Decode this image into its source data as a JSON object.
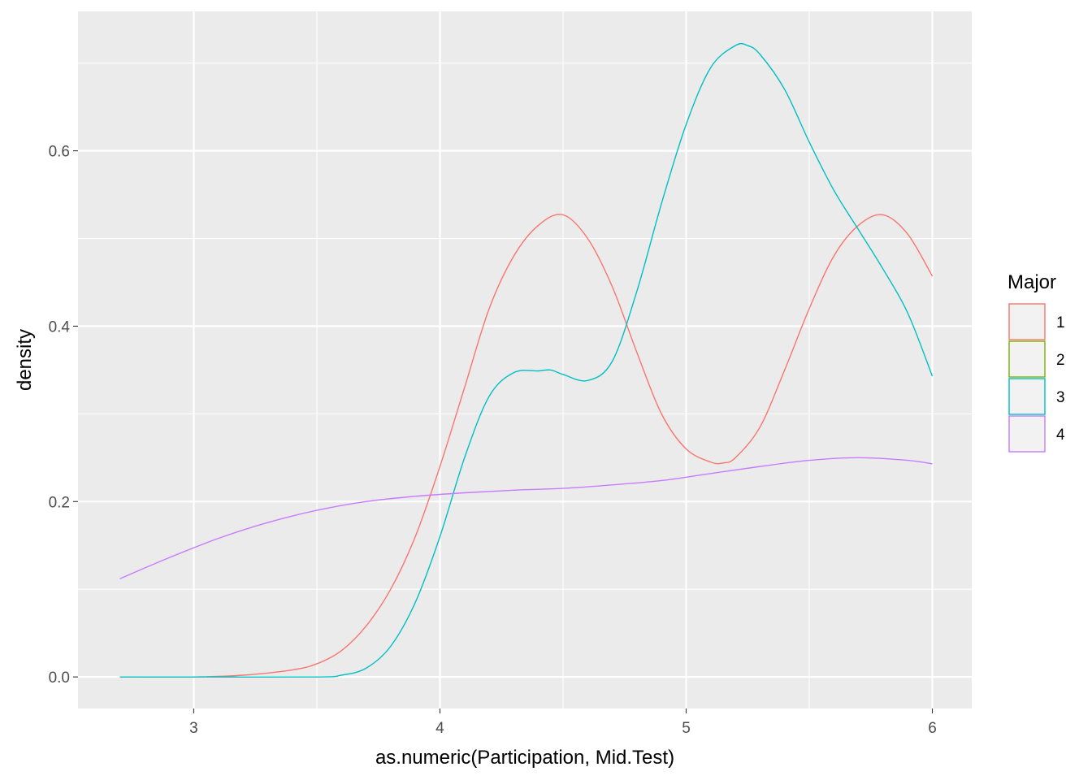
{
  "chart_data": {
    "type": "line",
    "title": "",
    "xlabel": "as.numeric(Participation, Mid.Test)",
    "ylabel": "density",
    "xlim": [
      2.53,
      6.16
    ],
    "ylim": [
      -0.036,
      0.759
    ],
    "x_ticks": [
      3,
      4,
      5,
      6
    ],
    "x_tick_labels": [
      "3",
      "4",
      "5",
      "6"
    ],
    "y_ticks": [
      0.0,
      0.2,
      0.4,
      0.6
    ],
    "y_tick_labels": [
      "0.0",
      "0.2",
      "0.4",
      "0.6"
    ],
    "grid": true,
    "legend": {
      "title": "Major",
      "placement": "right",
      "entries": [
        "1",
        "2",
        "3",
        "4"
      ]
    },
    "series": [
      {
        "name": "1",
        "color": "#F8766D",
        "x": [
          2.7,
          3.0,
          3.2,
          3.4,
          3.5,
          3.6,
          3.7,
          3.8,
          3.9,
          4.0,
          4.1,
          4.2,
          4.3,
          4.4,
          4.5,
          4.6,
          4.7,
          4.8,
          4.9,
          5.0,
          5.1,
          5.15,
          5.2,
          5.3,
          5.4,
          5.5,
          5.6,
          5.7,
          5.8,
          5.9,
          6.0
        ],
        "y": [
          0.0,
          0.0,
          0.002,
          0.008,
          0.015,
          0.03,
          0.058,
          0.1,
          0.16,
          0.24,
          0.33,
          0.42,
          0.48,
          0.515,
          0.527,
          0.5,
          0.445,
          0.37,
          0.3,
          0.26,
          0.245,
          0.244,
          0.25,
          0.285,
          0.35,
          0.42,
          0.48,
          0.515,
          0.527,
          0.505,
          0.457
        ]
      },
      {
        "name": "2",
        "color": "#7CAE00",
        "x": [],
        "y": []
      },
      {
        "name": "3",
        "color": "#00BFC4",
        "x": [
          2.7,
          3.0,
          3.5,
          3.6,
          3.7,
          3.8,
          3.9,
          4.0,
          4.1,
          4.2,
          4.3,
          4.4,
          4.45,
          4.5,
          4.6,
          4.7,
          4.8,
          4.9,
          5.0,
          5.1,
          5.2,
          5.25,
          5.3,
          5.4,
          5.5,
          5.6,
          5.7,
          5.8,
          5.9,
          6.0
        ],
        "y": [
          0.0,
          0.0,
          0.0,
          0.002,
          0.01,
          0.035,
          0.085,
          0.16,
          0.25,
          0.32,
          0.347,
          0.349,
          0.35,
          0.345,
          0.338,
          0.36,
          0.44,
          0.54,
          0.63,
          0.695,
          0.72,
          0.72,
          0.71,
          0.67,
          0.61,
          0.555,
          0.51,
          0.465,
          0.415,
          0.343
        ]
      },
      {
        "name": "4",
        "color": "#C77CFF",
        "x": [
          2.7,
          2.9,
          3.1,
          3.3,
          3.5,
          3.7,
          3.9,
          4.1,
          4.3,
          4.5,
          4.7,
          4.9,
          5.1,
          5.3,
          5.5,
          5.7,
          5.9,
          6.0
        ],
        "y": [
          0.112,
          0.136,
          0.158,
          0.176,
          0.19,
          0.2,
          0.206,
          0.21,
          0.213,
          0.215,
          0.219,
          0.224,
          0.232,
          0.24,
          0.247,
          0.25,
          0.247,
          0.243
        ]
      }
    ]
  }
}
